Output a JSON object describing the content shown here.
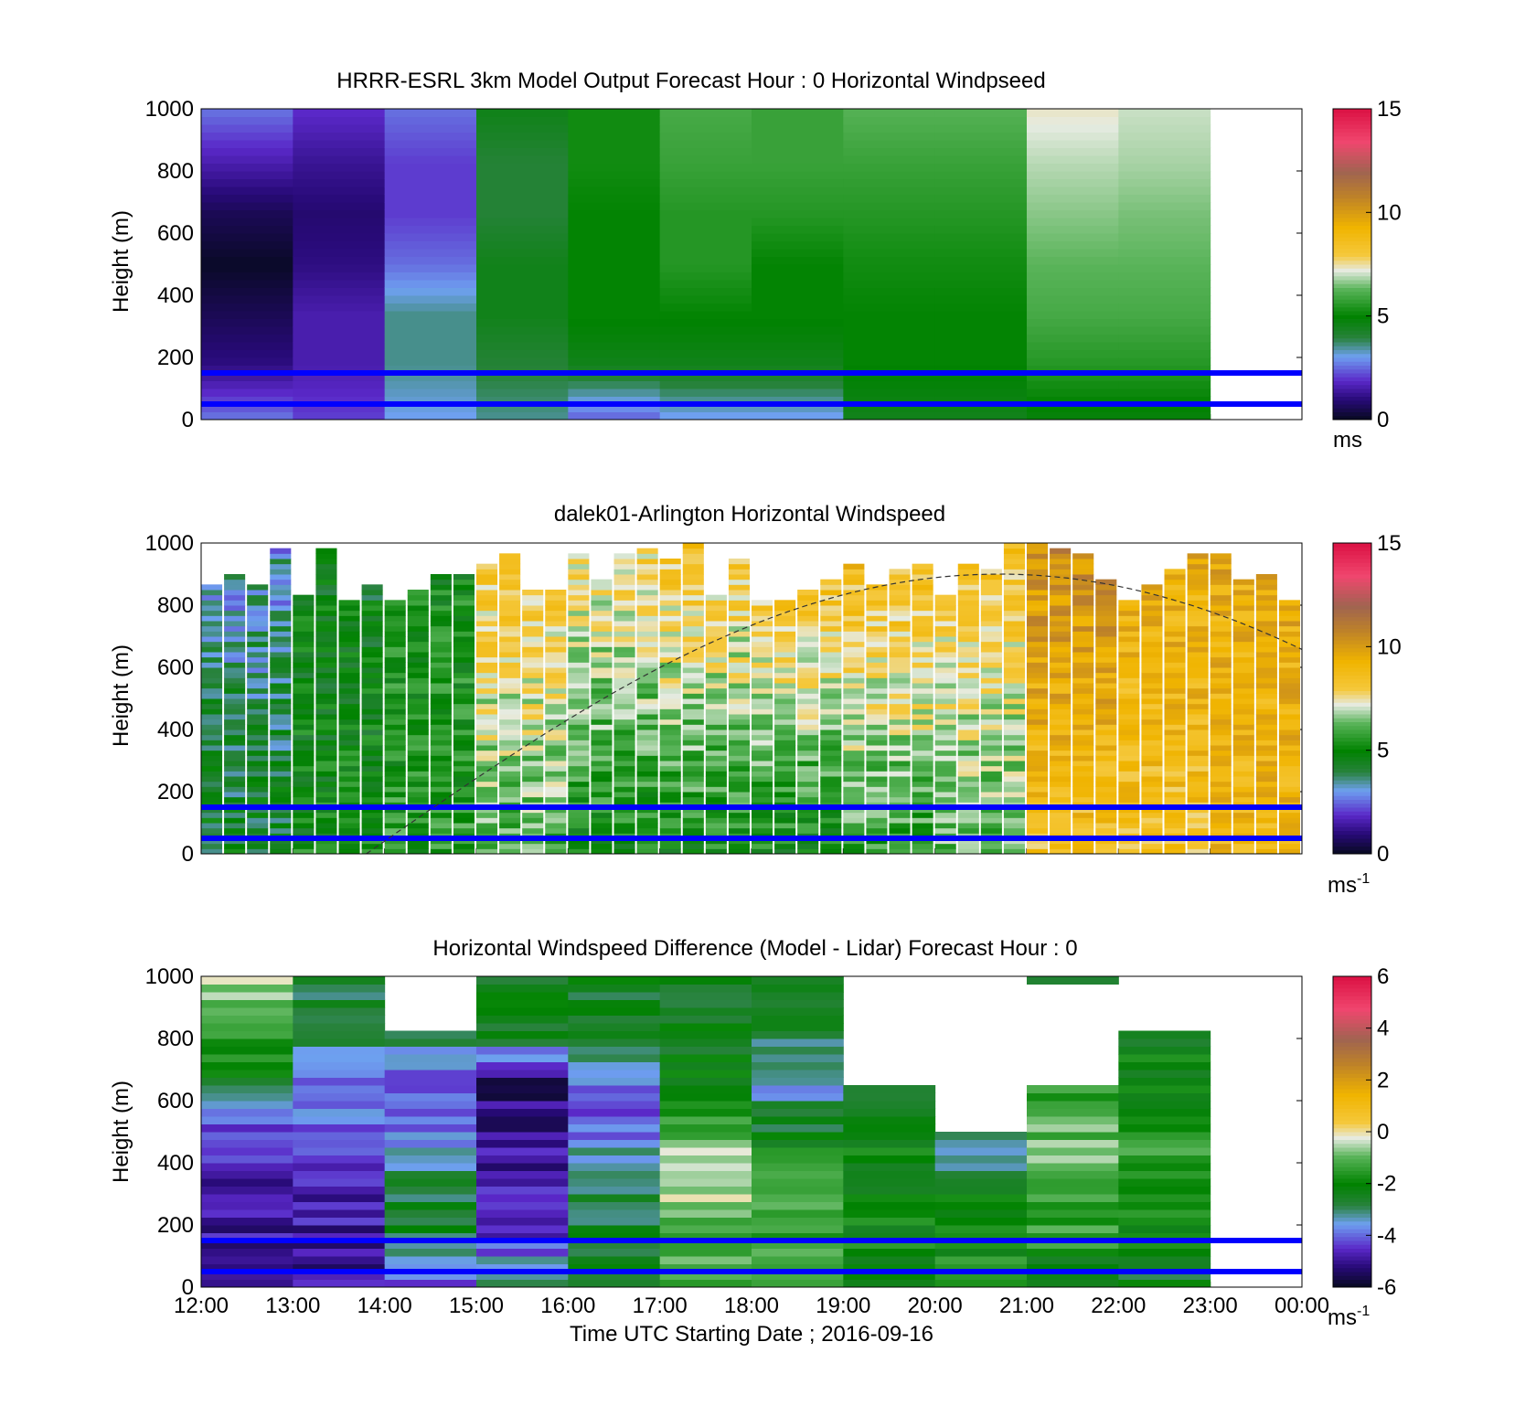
{
  "figure": {
    "xlabel": "Time UTC  Starting Date ; 2016-09-16",
    "xticks": [
      "12:00",
      "13:00",
      "14:00",
      "15:00",
      "16:00",
      "17:00",
      "18:00",
      "19:00",
      "20:00",
      "21:00",
      "22:00",
      "23:00",
      "00:00"
    ],
    "yticks": [
      "0",
      "200",
      "400",
      "600",
      "800",
      "1000"
    ],
    "ylabel": "Height (m)",
    "overlay_line_color": "#0000ff",
    "overlay_heights_m": [
      50,
      150
    ]
  },
  "chart_data": [
    {
      "type": "heatmap",
      "title": "HRRR-ESRL 3km Model Output   Forecast Hour : 0 Horizontal Windpseed",
      "ylabel": "Height (m)",
      "x_range": [
        "12:00",
        "00:00"
      ],
      "ylim": [
        0,
        1000
      ],
      "colorbar": {
        "range": [
          0,
          15
        ],
        "ticks": [
          "0",
          "5",
          "10",
          "15"
        ],
        "unit": "ms"
      },
      "hourly_columns": [
        "12:00",
        "13:00",
        "14:00",
        "15:00",
        "16:00",
        "17:00",
        "18:00",
        "19:00",
        "20:00",
        "21:00",
        "22:00"
      ],
      "approx_speed_ms_by_column_low_to_high": [
        [
          2.5,
          1.0,
          0.5,
          0.0,
          0.5,
          1.5,
          2.5
        ],
        [
          2.0,
          1.5,
          1.5,
          1.0,
          0.8,
          1.2,
          1.8
        ],
        [
          3.0,
          3.5,
          3.5,
          2.5,
          2.0,
          2.0,
          2.5
        ],
        [
          3.5,
          4.0,
          4.5,
          4.5,
          4.0,
          4.0,
          4.5
        ],
        [
          2.5,
          4.5,
          5.0,
          5.0,
          5.0,
          5.2,
          5.2
        ],
        [
          3.0,
          4.5,
          5.0,
          5.5,
          5.5,
          5.8,
          6.0
        ],
        [
          3.0,
          4.5,
          5.0,
          5.0,
          5.5,
          5.8,
          5.8
        ],
        [
          4.5,
          5.0,
          5.0,
          5.2,
          5.5,
          5.8,
          6.2
        ],
        [
          4.5,
          5.0,
          5.0,
          5.2,
          5.5,
          5.8,
          6.2
        ],
        [
          4.8,
          5.5,
          6.0,
          6.3,
          6.6,
          6.9,
          7.3
        ],
        [
          4.8,
          5.5,
          6.0,
          6.3,
          6.5,
          6.8,
          7.0
        ]
      ],
      "overlay_lines_m": [
        50,
        150
      ]
    },
    {
      "type": "heatmap",
      "title": "dalek01-Arlington  Horizontal Windspeed",
      "ylabel": "Height (m)",
      "x_range": [
        "12:00",
        "00:00"
      ],
      "ylim": [
        0,
        1000
      ],
      "colorbar": {
        "range": [
          0,
          15
        ],
        "ticks": [
          "0",
          "5",
          "10",
          "15"
        ],
        "unit": "ms",
        "unit_exponent": "-1"
      },
      "hourly_summary": [
        {
          "hour": "12:00",
          "low_ms": 4.5,
          "high_ms": 3.0
        },
        {
          "hour": "13:00",
          "low_ms": 5.0,
          "high_ms": 4.5
        },
        {
          "hour": "14:00",
          "low_ms": 5.5,
          "high_ms": 5.0
        },
        {
          "hour": "15:00",
          "low_ms": 6.0,
          "high_ms": 8.5
        },
        {
          "hour": "16:00",
          "low_ms": 5.0,
          "high_ms": 8.0
        },
        {
          "hour": "17:00",
          "low_ms": 5.0,
          "high_ms": 8.5
        },
        {
          "hour": "18:00",
          "low_ms": 5.0,
          "high_ms": 9.0
        },
        {
          "hour": "19:00",
          "low_ms": 5.5,
          "high_ms": 9.0
        },
        {
          "hour": "20:00",
          "low_ms": 6.0,
          "high_ms": 8.5
        },
        {
          "hour": "21:00",
          "low_ms": 8.5,
          "high_ms": 10.5
        },
        {
          "hour": "22:00",
          "low_ms": 8.5,
          "high_ms": 9.5
        },
        {
          "hour": "23:00",
          "low_ms": 9.0,
          "high_ms": 9.5
        }
      ],
      "dashed_curve_peak_m": 900,
      "overlay_lines_m": [
        50,
        150
      ]
    },
    {
      "type": "heatmap",
      "title": "Horizontal Windspeed Difference (Model - Lidar) Forecast Hour : 0",
      "ylabel": "Height (m)",
      "xlabel": "Time UTC  Starting Date ; 2016-09-16",
      "x_range": [
        "12:00",
        "00:00"
      ],
      "ylim": [
        0,
        1000
      ],
      "colorbar": {
        "range": [
          -6,
          6
        ],
        "ticks": [
          "-6",
          "-4",
          "-2",
          "0",
          "2",
          "4",
          "6"
        ],
        "unit": "ms",
        "unit_exponent": "-1"
      },
      "hourly_columns": [
        "12:00",
        "13:00",
        "14:00",
        "15:00",
        "16:00",
        "17:00",
        "18:00",
        "19:00",
        "20:00",
        "21:00",
        "22:00"
      ],
      "approx_diff_ms_by_column_low_to_high": [
        [
          -4.5,
          -5.0,
          -5.0,
          -4.5,
          -2.5,
          -1.5,
          -0.5
        ],
        [
          -5.0,
          -5.0,
          -4.5,
          -4.0,
          -4.0,
          -3.0,
          -2.5
        ],
        [
          -4.0,
          -2.5,
          -3.0,
          -4.0,
          -4.5,
          -2.5,
          null
        ],
        [
          -3.0,
          -4.5,
          -5.0,
          -5.0,
          -5.5,
          -2.5,
          -2.5
        ],
        [
          -2.5,
          -2.5,
          -3.0,
          -4.0,
          -4.0,
          -2.5,
          -2.5
        ],
        [
          -1.5,
          -1.0,
          -0.5,
          -1.0,
          -2.0,
          -2.5,
          -2.5
        ],
        [
          -1.5,
          -1.5,
          -1.0,
          -2.5,
          -3.5,
          -2.5,
          -3.0
        ],
        [
          -2.0,
          -2.0,
          -2.0,
          -2.0,
          -2.5,
          null,
          null
        ],
        [
          -1.5,
          -2.0,
          -2.5,
          -3.5,
          null,
          null,
          null
        ],
        [
          -2.5,
          -1.5,
          -1.0,
          -1.0,
          -1.5,
          null,
          -2.5
        ],
        [
          -2.5,
          -2.0,
          -1.5,
          -1.5,
          -2.0,
          -2.5,
          null
        ]
      ],
      "overlay_lines_m": [
        50,
        150
      ]
    }
  ]
}
